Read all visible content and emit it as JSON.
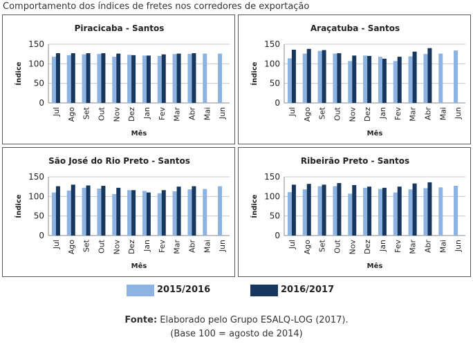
{
  "figure_title": "Comportamento dos índices de fretes nos corredores de exportação",
  "legend": [
    {
      "label": "2015/2016",
      "color": "#8db3e2"
    },
    {
      "label": "2016/2017",
      "color": "#17375e"
    }
  ],
  "footer": {
    "source_label": "Fonte:",
    "source_text": " Elaborado pelo Grupo ESALQ-LOG (2017).",
    "base_note": "(Base 100 = agosto de 2014)"
  },
  "chart_data": [
    {
      "type": "bar",
      "title": "Piracicaba - Santos",
      "xlabel": "Mês",
      "ylabel": "Índice",
      "ylim": [
        0,
        150
      ],
      "yticks": [
        0,
        50,
        100,
        150
      ],
      "grid": true,
      "categories": [
        "Jul",
        "Ago",
        "Set",
        "Out",
        "Nov",
        "Dez",
        "Jan",
        "Fev",
        "Mar",
        "Abr",
        "Mai",
        "Jun"
      ],
      "series": [
        {
          "name": "2015/2016",
          "values": [
            118,
            122,
            124,
            125,
            118,
            123,
            121,
            120,
            125,
            125,
            126,
            126
          ]
        },
        {
          "name": "2016/2017",
          "values": [
            127,
            127,
            127,
            127,
            126,
            122,
            121,
            124,
            126,
            127,
            null,
            null
          ]
        }
      ]
    },
    {
      "type": "bar",
      "title": "Araçatuba - Santos",
      "xlabel": "Mês",
      "ylabel": "Índice",
      "ylim": [
        0,
        150
      ],
      "yticks": [
        0,
        50,
        100,
        150
      ],
      "grid": true,
      "categories": [
        "Jul",
        "Ago",
        "Set",
        "Out",
        "Nov",
        "Dez",
        "Jan",
        "Fev",
        "Mar",
        "Abr",
        "Mai",
        "Jun"
      ],
      "series": [
        {
          "name": "2015/2016",
          "values": [
            114,
            126,
            133,
            126,
            107,
            121,
            118,
            107,
            119,
            125,
            126,
            134
          ]
        },
        {
          "name": "2016/2017",
          "values": [
            136,
            138,
            135,
            127,
            121,
            120,
            113,
            118,
            131,
            140,
            null,
            null
          ]
        }
      ]
    },
    {
      "type": "bar",
      "title": "São José do Rio Preto - Santos",
      "xlabel": "Mês",
      "ylabel": "Índice",
      "ylim": [
        0,
        150
      ],
      "yticks": [
        0,
        50,
        100,
        150
      ],
      "grid": true,
      "categories": [
        "Jul",
        "Ago",
        "Set",
        "Out",
        "Nov",
        "Dez",
        "Jan",
        "Fev",
        "Mar",
        "Abr",
        "Mai",
        "Jun"
      ],
      "series": [
        {
          "name": "2015/2016",
          "values": [
            110,
            115,
            122,
            120,
            106,
            116,
            114,
            108,
            113,
            118,
            119,
            126
          ]
        },
        {
          "name": "2016/2017",
          "values": [
            126,
            130,
            128,
            127,
            122,
            116,
            110,
            116,
            125,
            126,
            null,
            null
          ]
        }
      ]
    },
    {
      "type": "bar",
      "title": "Ribeirão Preto - Santos",
      "xlabel": "Mês",
      "ylabel": "Índice",
      "ylim": [
        0,
        150
      ],
      "yticks": [
        0,
        50,
        100,
        150
      ],
      "grid": true,
      "categories": [
        "Jul",
        "Ago",
        "Set",
        "Out",
        "Nov",
        "Dez",
        "Jan",
        "Fev",
        "Mar",
        "Abr",
        "Mai",
        "Jun"
      ],
      "series": [
        {
          "name": "2015/2016",
          "values": [
            111,
            118,
            126,
            126,
            107,
            122,
            119,
            110,
            118,
            121,
            123,
            127
          ]
        },
        {
          "name": "2016/2017",
          "values": [
            130,
            132,
            130,
            134,
            129,
            125,
            122,
            125,
            133,
            136,
            null,
            null
          ]
        }
      ]
    }
  ]
}
